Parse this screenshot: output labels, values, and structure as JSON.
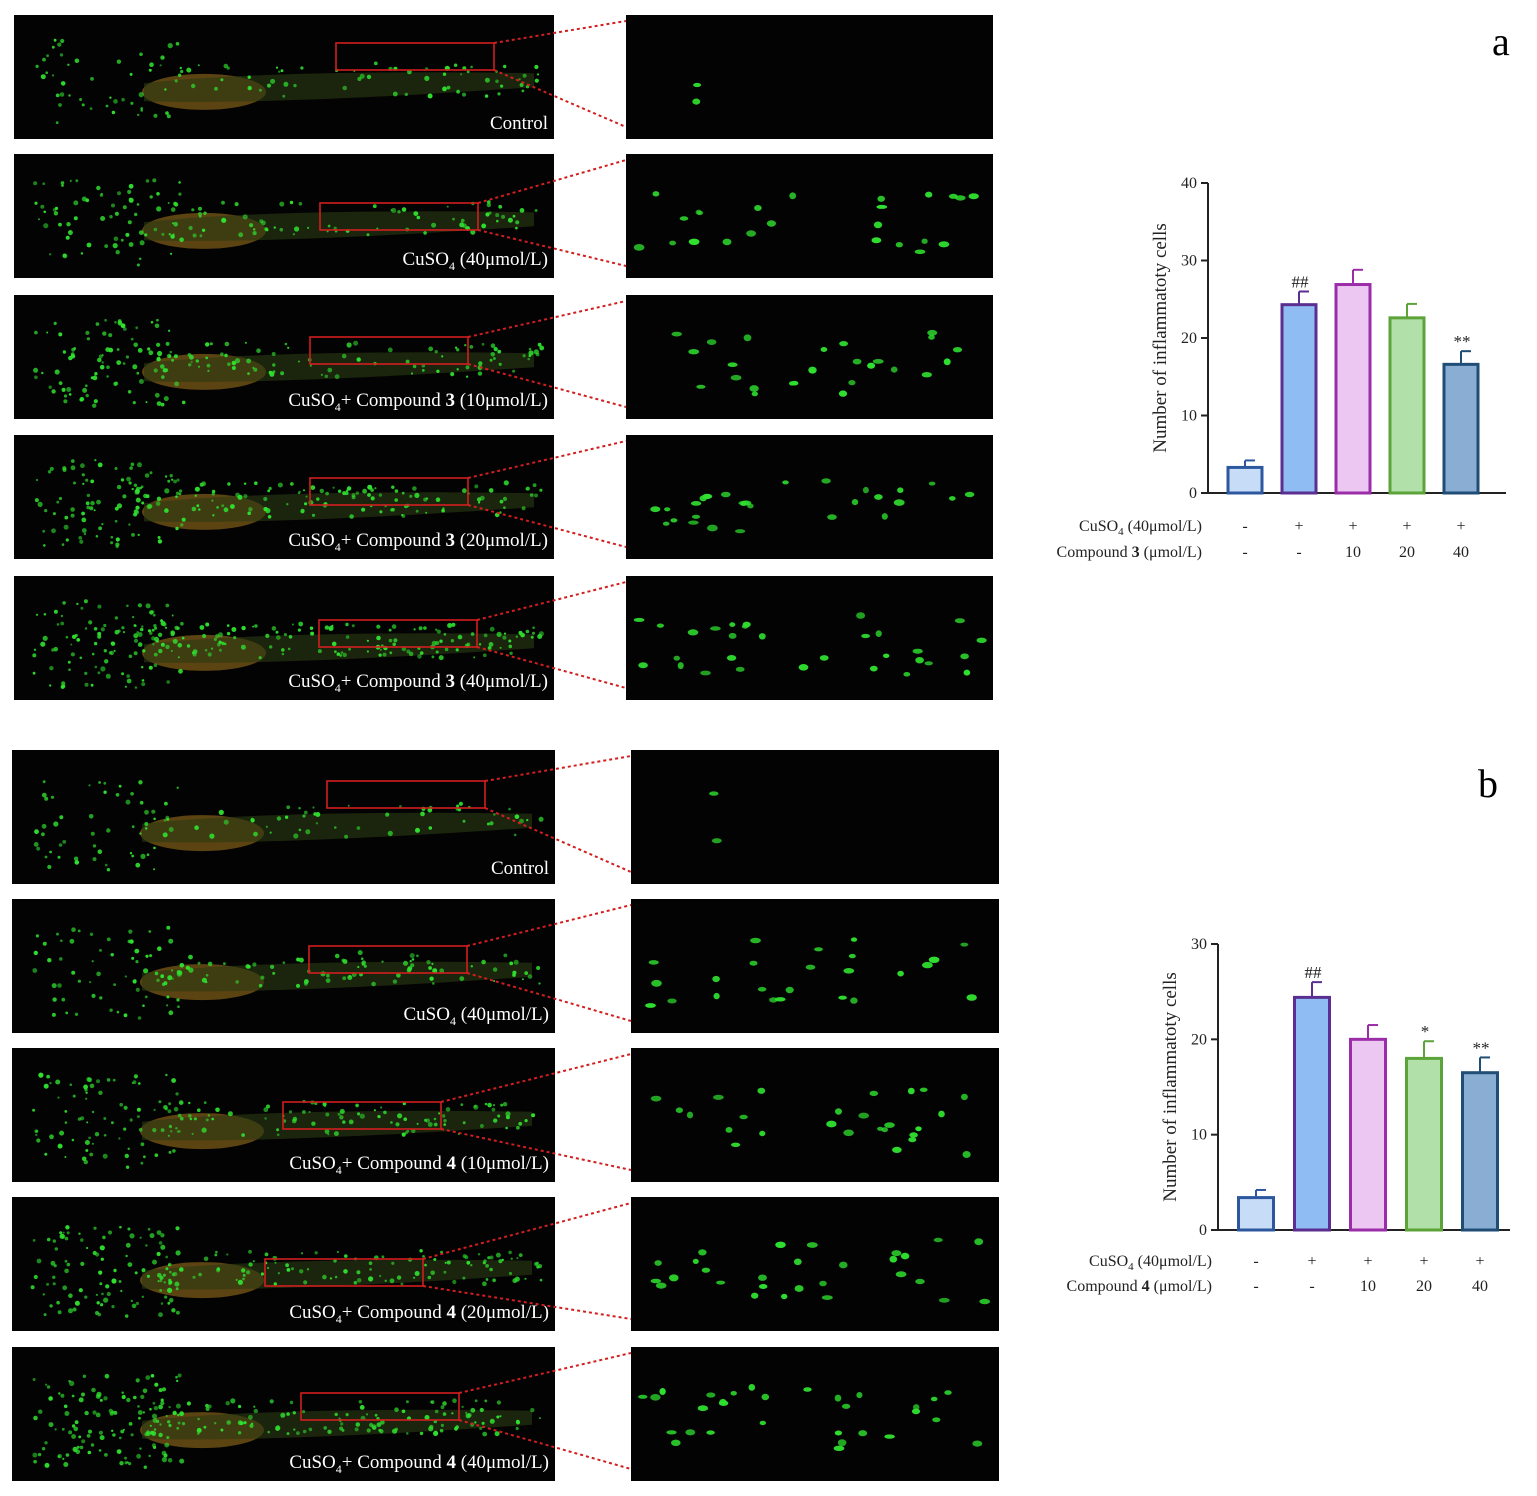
{
  "panels": [
    {
      "letter": "a",
      "rows": [
        {
          "label_pre": "Control",
          "sub": "",
          "mid": "",
          "compound": "",
          "label_post": ""
        },
        {
          "label_pre": "CuSO",
          "sub": "4",
          "mid": " (40μmol/L)",
          "compound": "",
          "label_post": ""
        },
        {
          "label_pre": "CuSO",
          "sub": "4",
          "mid": "+ Compound ",
          "compound": "3",
          "label_post": " (10μmol/L)"
        },
        {
          "label_pre": "CuSO",
          "sub": "4",
          "mid": "+ Compound ",
          "compound": "3",
          "label_post": " (20μmol/L)"
        },
        {
          "label_pre": "CuSO",
          "sub": "4",
          "mid": "+ Compound ",
          "compound": "3",
          "label_post": " (40μmol/L)"
        }
      ]
    },
    {
      "letter": "b",
      "rows": [
        {
          "label_pre": "Control",
          "sub": "",
          "mid": "",
          "compound": "",
          "label_post": ""
        },
        {
          "label_pre": "CuSO",
          "sub": "4",
          "mid": " (40μmol/L)",
          "compound": "",
          "label_post": ""
        },
        {
          "label_pre": "CuSO",
          "sub": "4",
          "mid": "+ Compound ",
          "compound": "4",
          "label_post": " (10μmol/L)"
        },
        {
          "label_pre": "CuSO",
          "sub": "4",
          "mid": "+ Compound ",
          "compound": "4",
          "label_post": " (20μmol/L)"
        },
        {
          "label_pre": "CuSO",
          "sub": "4",
          "mid": "+ Compound ",
          "compound": "4",
          "label_post": " (40μmol/L)"
        }
      ]
    }
  ],
  "colors": {
    "bar_fills": [
      "#c6dcf7",
      "#8fbdf3",
      "#ecc7f2",
      "#b2e0a9",
      "#8aaed3"
    ],
    "bar_strokes": [
      "#2d58a0",
      "#5b2f92",
      "#9b2ea8",
      "#5ca339",
      "#1f4d75"
    ],
    "fluorescence": "#2fe02f"
  },
  "chart_data": [
    {
      "type": "bar",
      "ylabel": "Number of inflammatoty cells",
      "ylim": [
        0,
        40
      ],
      "yticks": [
        "0",
        "10",
        "20",
        "30",
        "40"
      ],
      "categories": [
        "Control",
        "CuSO4",
        "Compound 3 10",
        "Compound 3 20",
        "Compound 3 40"
      ],
      "values": [
        3.3,
        24.3,
        26.9,
        22.6,
        16.6
      ],
      "errors": [
        0.9,
        1.7,
        1.9,
        1.8,
        1.7
      ],
      "annotations": [
        "",
        "##",
        "",
        "",
        "**"
      ],
      "row1_label": "CuSO",
      "row1_sub": "4",
      "row1_rest": " (40μmol/L)",
      "row1_values": [
        "-",
        "+",
        "+",
        "+",
        "+"
      ],
      "row2_label": "Compound ",
      "row2_bold": "3",
      "row2_rest": " (μmol/L)",
      "row2_values": [
        "-",
        "-",
        "10",
        "20",
        "40"
      ]
    },
    {
      "type": "bar",
      "ylabel": "Number of inflammatoty cells",
      "ylim": [
        0,
        30
      ],
      "yticks": [
        "0",
        "10",
        "20",
        "30"
      ],
      "categories": [
        "Control",
        "CuSO4",
        "Compound 4 10",
        "Compound 4 20",
        "Compound 4 40"
      ],
      "values": [
        3.4,
        24.4,
        20.0,
        18.0,
        16.5
      ],
      "errors": [
        0.8,
        1.6,
        1.5,
        1.8,
        1.6
      ],
      "annotations": [
        "",
        "##",
        "",
        "*",
        "**"
      ],
      "row1_label": "CuSO",
      "row1_sub": "4",
      "row1_rest": " (40μmol/L)",
      "row1_values": [
        "-",
        "+",
        "+",
        "+",
        "+"
      ],
      "row2_label": "Compound ",
      "row2_bold": "4",
      "row2_rest": " (μmol/L)",
      "row2_values": [
        "-",
        "-",
        "10",
        "20",
        "40"
      ]
    }
  ]
}
